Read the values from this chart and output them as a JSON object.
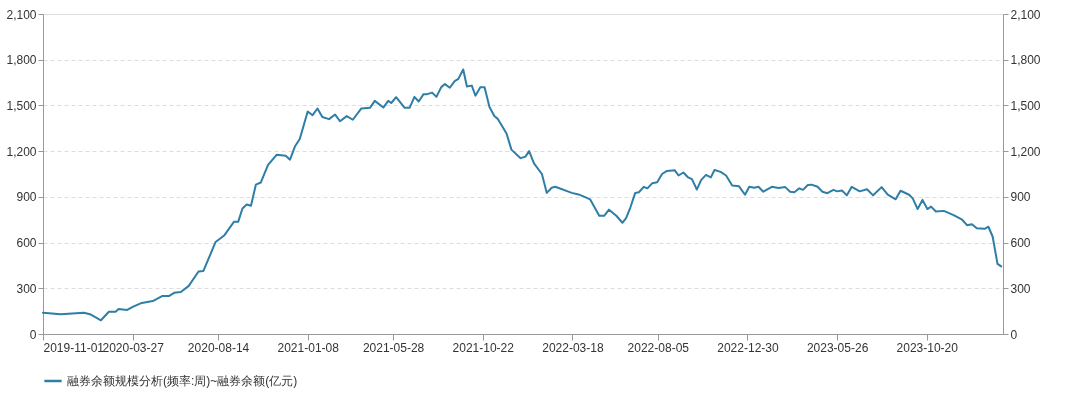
{
  "chart_data": {
    "type": "line",
    "x": [
      "2019-11-01",
      "2019-11-30",
      "2020-01-07",
      "2020-01-17",
      "2020-02-04",
      "2020-02-17",
      "2020-02-28",
      "2020-03-04",
      "2020-03-18",
      "2020-03-28",
      "2020-04-11",
      "2020-04-29",
      "2020-05-15",
      "2020-05-26",
      "2020-06-03",
      "2020-06-14",
      "2020-06-27",
      "2020-07-13",
      "2020-07-21",
      "2020-08-10",
      "2020-08-24",
      "2020-09-09",
      "2020-09-16",
      "2020-09-23",
      "2020-09-30",
      "2020-10-07",
      "2020-10-15",
      "2020-10-23",
      "2020-11-04",
      "2020-11-18",
      "2020-12-03",
      "2020-12-10",
      "2020-12-18",
      "2020-12-26",
      "2021-01-08",
      "2021-01-16",
      "2021-01-24",
      "2021-02-01",
      "2021-02-12",
      "2021-02-22",
      "2021-03-02",
      "2021-03-13",
      "2021-03-23",
      "2021-04-06",
      "2021-04-20",
      "2021-04-28",
      "2021-05-12",
      "2021-05-20",
      "2021-05-25",
      "2021-06-02",
      "2021-06-16",
      "2021-06-24",
      "2021-07-02",
      "2021-07-09",
      "2021-07-17",
      "2021-07-23",
      "2021-07-31",
      "2021-08-07",
      "2021-08-15",
      "2021-08-21",
      "2021-08-29",
      "2021-09-06",
      "2021-09-12",
      "2021-09-20",
      "2021-09-26",
      "2021-10-04",
      "2021-10-10",
      "2021-10-18",
      "2021-10-25",
      "2021-11-02",
      "2021-11-10",
      "2021-11-16",
      "2021-11-30",
      "2021-12-08",
      "2021-12-23",
      "2021-12-31",
      "2022-01-06",
      "2022-01-14",
      "2022-01-27",
      "2022-02-04",
      "2022-02-12",
      "2022-02-18",
      "2022-03-17",
      "2022-03-28",
      "2022-04-07",
      "2022-04-16",
      "2022-05-01",
      "2022-05-09",
      "2022-05-17",
      "2022-05-29",
      "2022-06-08",
      "2022-06-14",
      "2022-06-21",
      "2022-06-29",
      "2022-07-05",
      "2022-07-13",
      "2022-07-19",
      "2022-07-27",
      "2022-08-04",
      "2022-08-12",
      "2022-08-20",
      "2022-09-02",
      "2022-09-08",
      "2022-09-16",
      "2022-09-23",
      "2022-09-30",
      "2022-10-08",
      "2022-10-15",
      "2022-10-23",
      "2022-10-31",
      "2022-11-06",
      "2022-11-16",
      "2022-11-25",
      "2022-12-05",
      "2022-12-16",
      "2022-12-26",
      "2023-01-02",
      "2023-01-10",
      "2023-01-17",
      "2023-01-25",
      "2023-02-08",
      "2023-02-19",
      "2023-03-02",
      "2023-03-10",
      "2023-03-17",
      "2023-03-25",
      "2023-03-31",
      "2023-04-08",
      "2023-04-14",
      "2023-04-24",
      "2023-05-02",
      "2023-05-10",
      "2023-05-20",
      "2023-05-26",
      "2023-06-03",
      "2023-06-11",
      "2023-06-19",
      "2023-07-02",
      "2023-07-14",
      "2023-07-24",
      "2023-08-07",
      "2023-08-17",
      "2023-08-30",
      "2023-09-07",
      "2023-09-21",
      "2023-09-27",
      "2023-10-05",
      "2023-10-13",
      "2023-10-21",
      "2023-10-27",
      "2023-11-04",
      "2023-11-17",
      "2023-12-03",
      "2023-12-17",
      "2023-12-25",
      "2024-01-02",
      "2024-01-10",
      "2024-01-23",
      "2024-01-29",
      "2024-02-05",
      "2024-02-13",
      "2024-02-19"
    ],
    "series": [
      {
        "name": "融券余额规模分析(频率:周)~融券余额(亿元)",
        "color": "#2e7ea6",
        "values": [
          140,
          130,
          140,
          130,
          90,
          146,
          146,
          164,
          158,
          180,
          204,
          216,
          250,
          250,
          270,
          276,
          316,
          410,
          414,
          604,
          646,
          736,
          736,
          824,
          850,
          842,
          980,
          994,
          1110,
          1176,
          1170,
          1144,
          1230,
          1280,
          1460,
          1436,
          1480,
          1424,
          1410,
          1440,
          1396,
          1430,
          1406,
          1480,
          1484,
          1530,
          1486,
          1530,
          1516,
          1554,
          1484,
          1484,
          1556,
          1526,
          1574,
          1574,
          1584,
          1556,
          1620,
          1640,
          1616,
          1660,
          1674,
          1736,
          1624,
          1630,
          1564,
          1620,
          1620,
          1490,
          1430,
          1410,
          1316,
          1210,
          1154,
          1164,
          1200,
          1120,
          1050,
          926,
          960,
          966,
          926,
          916,
          900,
          884,
          776,
          776,
          816,
          776,
          730,
          760,
          830,
          926,
          930,
          966,
          956,
          990,
          996,
          1050,
          1070,
          1074,
          1040,
          1060,
          1030,
          1016,
          948,
          1010,
          1044,
          1028,
          1076,
          1064,
          1040,
          974,
          970,
          914,
          966,
          960,
          966,
          934,
          966,
          958,
          964,
          934,
          930,
          956,
          946,
          978,
          980,
          966,
          934,
          924,
          946,
          936,
          942,
          910,
          966,
          936,
          950,
          910,
          964,
          914,
          884,
          940,
          914,
          890,
          820,
          880,
          820,
          836,
          804,
          808,
          780,
          750,
          714,
          720,
          694,
          690,
          704,
          640,
          460,
          444
        ]
      }
    ],
    "xlim": [
      "2019-11-01",
      "2024-02-22"
    ],
    "xticks": [
      "2019-11-01",
      "2020-03-27",
      "2020-08-14",
      "2021-01-08",
      "2021-05-28",
      "2021-10-22",
      "2022-03-18",
      "2022-08-05",
      "2022-12-30",
      "2023-05-26",
      "2023-10-20"
    ],
    "ylim": [
      0,
      2100
    ],
    "yticks": [
      {
        "value": 0,
        "label": "0"
      },
      {
        "value": 300,
        "label": "300"
      },
      {
        "value": 600,
        "label": "600"
      },
      {
        "value": 900,
        "label": "900"
      },
      {
        "value": 1200,
        "label": "1,200"
      },
      {
        "value": 1500,
        "label": "1,500"
      },
      {
        "value": 1800,
        "label": "1,800"
      },
      {
        "value": 2100,
        "label": "2,100"
      }
    ],
    "y2lim": [
      0,
      2100
    ],
    "y2ticks": [
      {
        "value": 0,
        "label": "0"
      },
      {
        "value": 300,
        "label": "300"
      },
      {
        "value": 600,
        "label": "600"
      },
      {
        "value": 900,
        "label": "900"
      },
      {
        "value": 1200,
        "label": "1,200"
      },
      {
        "value": 1500,
        "label": "1,500"
      },
      {
        "value": 1800,
        "label": "1,800"
      },
      {
        "value": 2100,
        "label": "2,100"
      }
    ],
    "grid": "y",
    "legend": "bottom",
    "marker": "none",
    "line_style": "solid"
  }
}
